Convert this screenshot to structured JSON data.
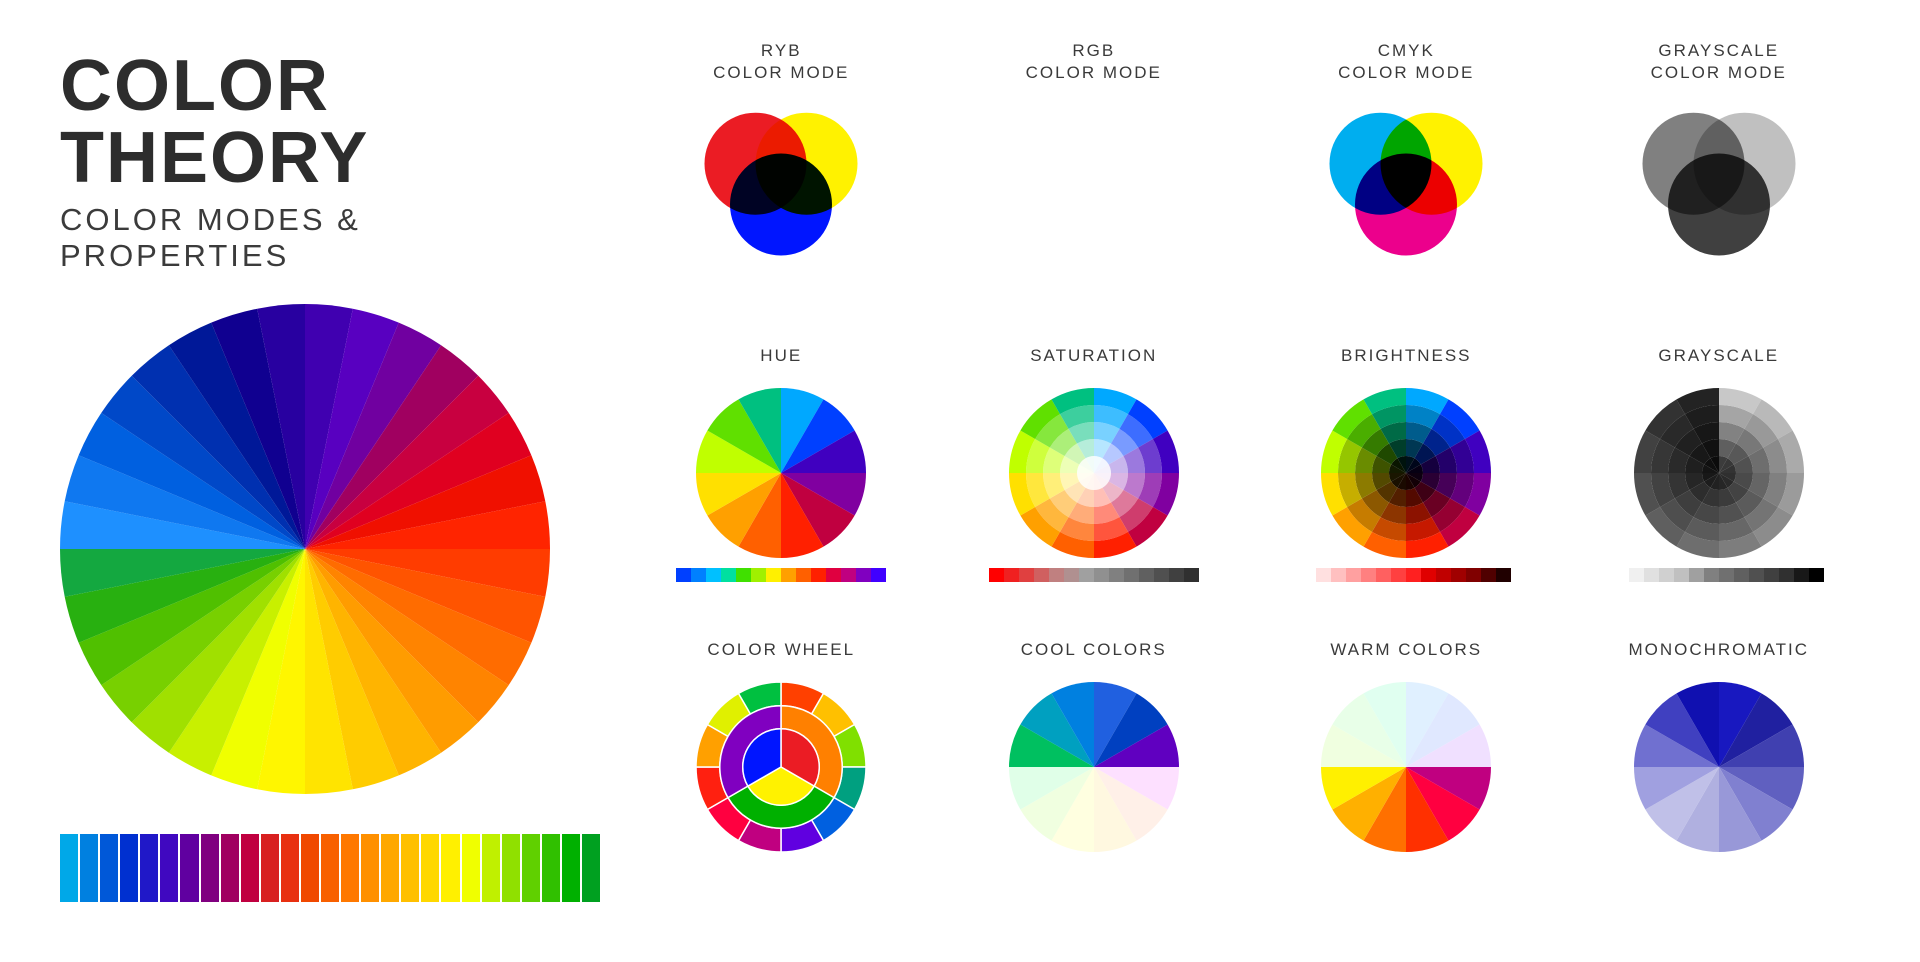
{
  "title": "COLOR THEORY",
  "subtitle": "COLOR MODES & PROPERTIES",
  "background_color": "#ffffff",
  "title_color": "#2d2d2d",
  "label_color": "#3a3a3a",
  "title_fontsize": 72,
  "subtitle_fontsize": 31,
  "label_fontsize": 17,
  "main_wheel": {
    "type": "color-wheel",
    "diameter": 490,
    "segments": 32,
    "colors": [
      "#1e90ff",
      "#0f78f0",
      "#0060e0",
      "#0048c8",
      "#0030b0",
      "#001898",
      "#100090",
      "#2800a0",
      "#4000b0",
      "#5800c0",
      "#7000a0",
      "#a00060",
      "#c80040",
      "#e00020",
      "#f01000",
      "#ff2400",
      "#ff3c00",
      "#ff5400",
      "#ff6c00",
      "#ff8400",
      "#ff9c00",
      "#ffb400",
      "#ffcc00",
      "#ffe400",
      "#fff600",
      "#f0ff00",
      "#c8f000",
      "#a0e000",
      "#78d000",
      "#50c000",
      "#28b010",
      "#14a840"
    ]
  },
  "spectrum_bar": {
    "type": "swatch-row",
    "height": 68,
    "colors": [
      "#00a8e8",
      "#0080e0",
      "#0058d8",
      "#0030d0",
      "#2018c8",
      "#4008c0",
      "#6000a0",
      "#800080",
      "#a00060",
      "#c00040",
      "#d82020",
      "#e83010",
      "#f04800",
      "#f86000",
      "#ff7800",
      "#ff9000",
      "#ffa800",
      "#ffc000",
      "#ffd800",
      "#fff000",
      "#f0ff00",
      "#c0f000",
      "#90e000",
      "#60d000",
      "#30c000",
      "#00b000",
      "#00a020"
    ]
  },
  "cells": [
    {
      "id": "ryb",
      "label": "RYB\nCOLOR MODE",
      "type": "venn",
      "blend": "multiply",
      "colors": [
        "#eb1c24",
        "#fff200",
        "#0015ff"
      ]
    },
    {
      "id": "rgb",
      "label": "RGB\nCOLOR MODE",
      "type": "venn",
      "blend": "screen",
      "bg": "#000000",
      "colors": [
        "#ff0000",
        "#00ff00",
        "#0000ff"
      ]
    },
    {
      "id": "cmyk",
      "label": "CMYK\nCOLOR MODE",
      "type": "venn",
      "blend": "multiply",
      "colors": [
        "#00aeef",
        "#fff200",
        "#ec008c"
      ]
    },
    {
      "id": "grayscale-mode",
      "label": "GRAYSCALE\nCOLOR MODE",
      "type": "venn",
      "blend": "multiply",
      "colors": [
        "#808080",
        "#c0c0c0",
        "#404040"
      ]
    },
    {
      "id": "hue",
      "label": "HUE",
      "type": "pie",
      "segments": 12,
      "colors": [
        "#00a8ff",
        "#0040ff",
        "#4000c0",
        "#8000a0",
        "#c00040",
        "#ff2000",
        "#ff6000",
        "#ffa000",
        "#ffe000",
        "#c0ff00",
        "#60e000",
        "#00c080"
      ],
      "swatches": [
        "#0040ff",
        "#0080ff",
        "#00c0ff",
        "#00e0a0",
        "#40e000",
        "#a0f000",
        "#fff000",
        "#ffa000",
        "#ff6000",
        "#ff2000",
        "#e00040",
        "#c00080",
        "#8000c0",
        "#4000ff"
      ]
    },
    {
      "id": "saturation",
      "label": "SATURATION",
      "type": "rings-saturation",
      "segments": 12,
      "colors": [
        "#00a8ff",
        "#0040ff",
        "#4000c0",
        "#8000a0",
        "#c00040",
        "#ff2000",
        "#ff6000",
        "#ffa000",
        "#ffe000",
        "#c0ff00",
        "#60e000",
        "#00c080"
      ],
      "swatches": [
        "#ff0000",
        "#f02020",
        "#e04040",
        "#d06060",
        "#c08080",
        "#b09090",
        "#a0a0a0",
        "#909090",
        "#808080",
        "#707070",
        "#606060",
        "#505050",
        "#404040",
        "#303030"
      ]
    },
    {
      "id": "brightness",
      "label": "BRIGHTNESS",
      "type": "rings-brightness",
      "segments": 12,
      "colors": [
        "#00a8ff",
        "#0040ff",
        "#4000c0",
        "#8000a0",
        "#c00040",
        "#ff2000",
        "#ff6000",
        "#ffa000",
        "#ffe000",
        "#c0ff00",
        "#60e000",
        "#00c080"
      ],
      "swatches": [
        "#ffffff",
        "#ffe0e0",
        "#ffc0c0",
        "#ffa0a0",
        "#ff8080",
        "#ff6060",
        "#ff4040",
        "#ff2020",
        "#e00000",
        "#c00000",
        "#a00000",
        "#800000",
        "#500000",
        "#200000"
      ]
    },
    {
      "id": "grayscale",
      "label": "GRAYSCALE",
      "type": "rings-gray",
      "segments": 12,
      "swatches": [
        "#ffffff",
        "#f0f0f0",
        "#e0e0e0",
        "#d0d0d0",
        "#c0c0c0",
        "#a0a0a0",
        "#808080",
        "#707070",
        "#606060",
        "#505050",
        "#404040",
        "#303030",
        "#181818",
        "#000000"
      ]
    },
    {
      "id": "color-wheel",
      "label": "COLOR WHEEL",
      "type": "concentric",
      "rings": [
        {
          "colors": [
            "#eb1c24",
            "#fff200",
            "#0015ff"
          ]
        },
        {
          "colors": [
            "#ff8000",
            "#00b000",
            "#8000c0"
          ]
        },
        {
          "colors": [
            "#ff4000",
            "#ffc000",
            "#80e000",
            "#00a080",
            "#0060e0",
            "#6000e0",
            "#c00080",
            "#ff0040",
            "#ff2010",
            "#ffa000",
            "#e0f000",
            "#00c040"
          ]
        }
      ]
    },
    {
      "id": "cool",
      "label": "COOL COLORS",
      "type": "pie",
      "segments": 12,
      "colors": [
        "#2060e0",
        "#0040c0",
        "#6000c0",
        "#fde0ff",
        "#fff0e8",
        "#fff8e0",
        "#ffffe0",
        "#f0ffe0",
        "#e0ffe8",
        "#00c060",
        "#00a0c0",
        "#0080e0"
      ]
    },
    {
      "id": "warm",
      "label": "WARM COLORS",
      "type": "pie",
      "segments": 12,
      "colors": [
        "#e0f0ff",
        "#e0e8ff",
        "#f0e0ff",
        "#c00080",
        "#ff0040",
        "#ff3000",
        "#ff7000",
        "#ffb000",
        "#fff000",
        "#f0ffe0",
        "#e8ffe8",
        "#e0fff0"
      ]
    },
    {
      "id": "monochromatic",
      "label": "MONOCHROMATIC",
      "type": "pie",
      "segments": 12,
      "colors": [
        "#1818c0",
        "#2020a0",
        "#4040b0",
        "#6060c0",
        "#8080d0",
        "#9898d8",
        "#b0b0e0",
        "#c0c0e8",
        "#a0a0e0",
        "#7070d0",
        "#4040c0",
        "#1010b0"
      ]
    }
  ]
}
